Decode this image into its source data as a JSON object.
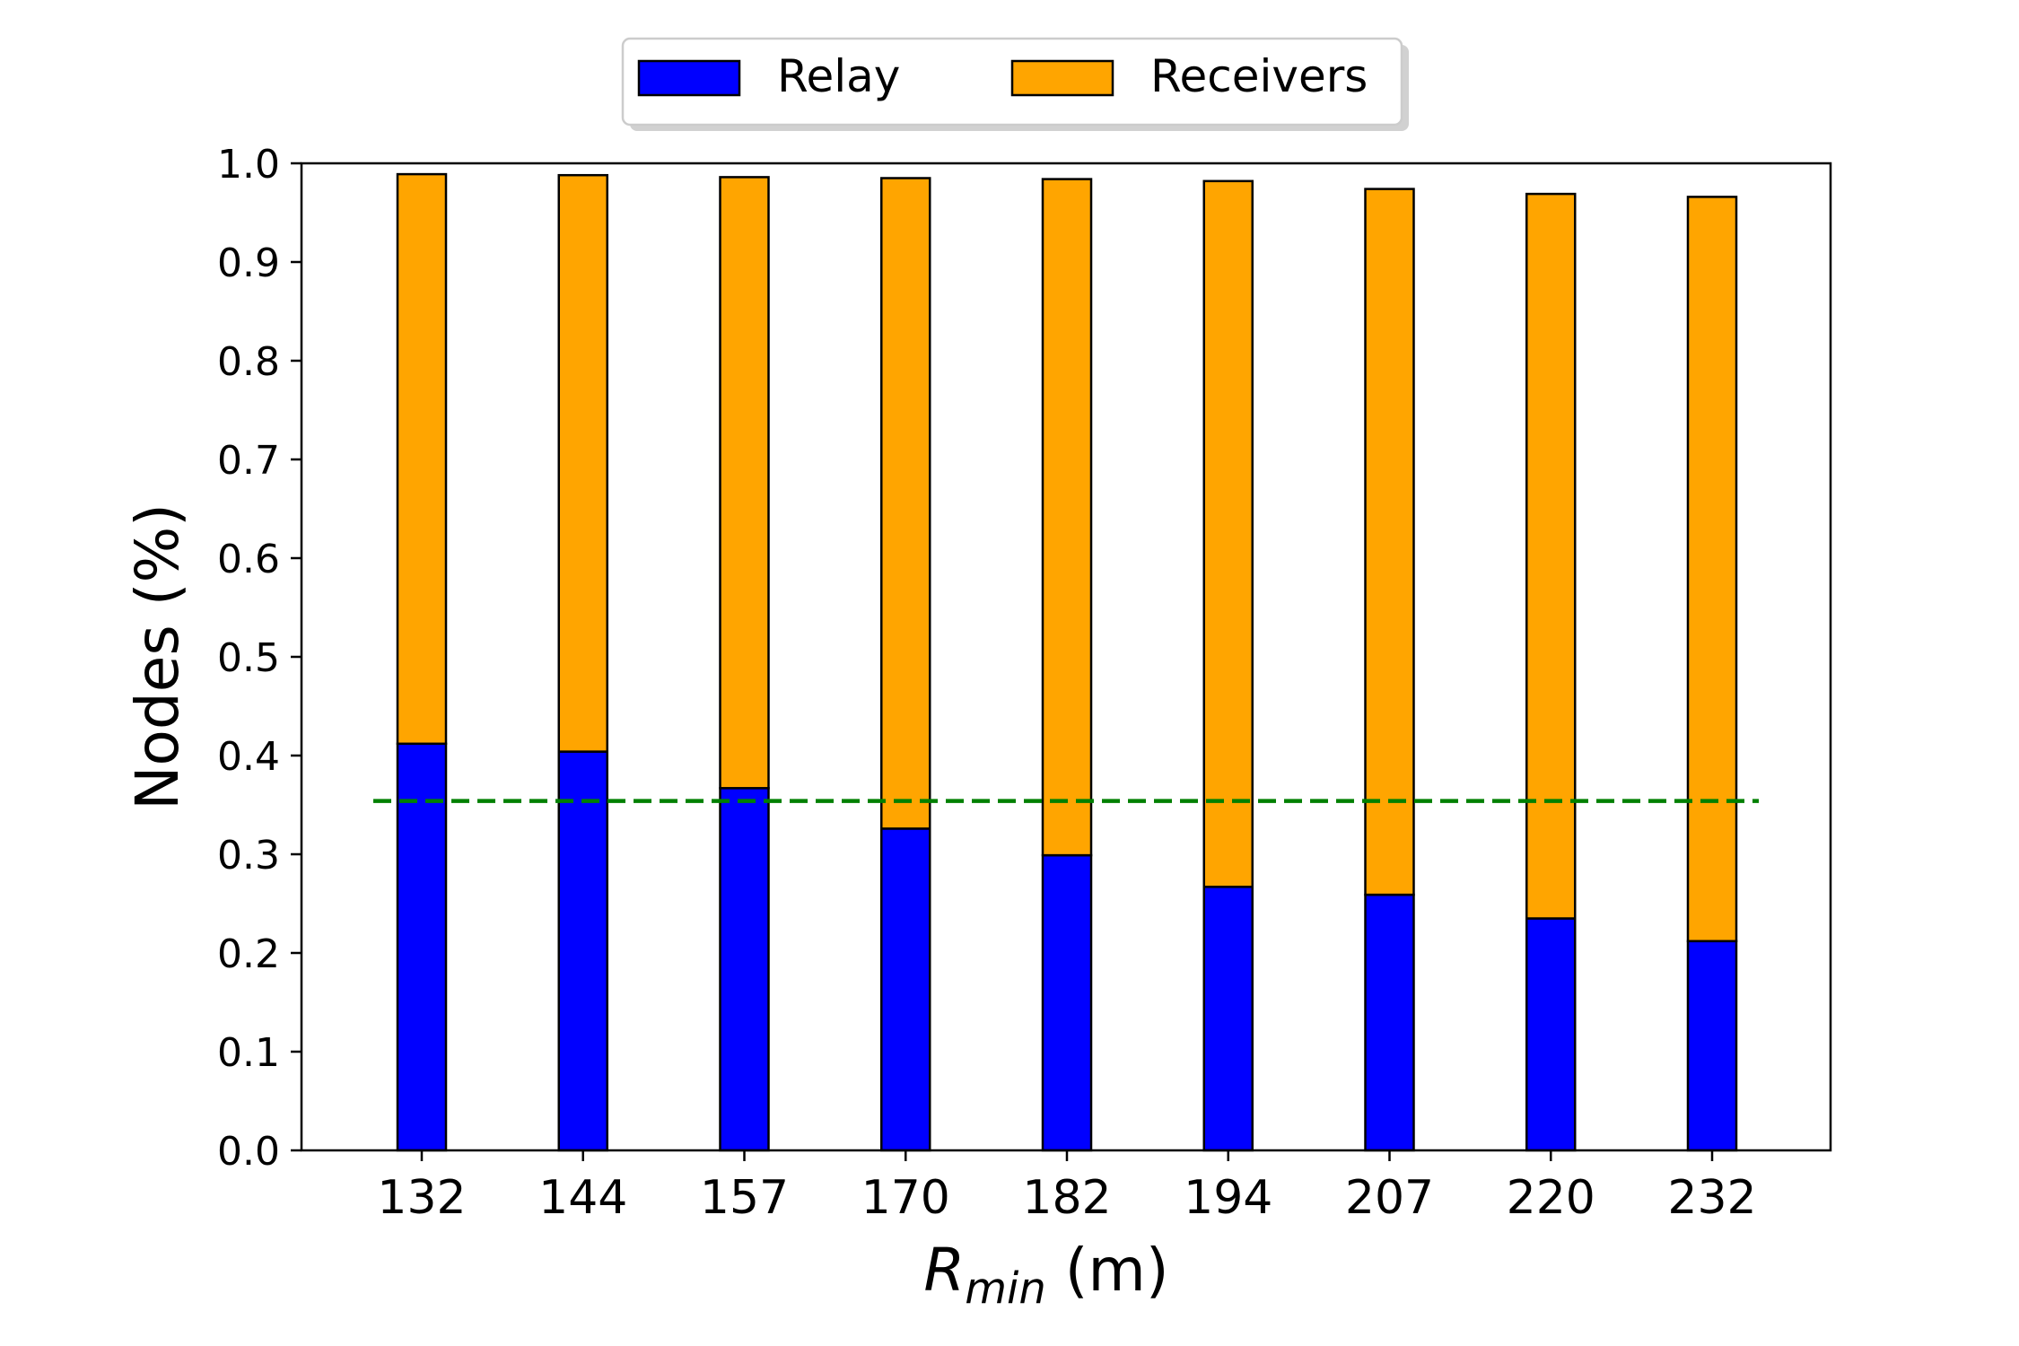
{
  "chart_data": {
    "type": "bar",
    "stacked": true,
    "categories": [
      "132",
      "144",
      "157",
      "170",
      "182",
      "194",
      "207",
      "220",
      "232"
    ],
    "series": [
      {
        "name": "Relay",
        "color": "#0000ff",
        "values": [
          0.412,
          0.404,
          0.367,
          0.326,
          0.299,
          0.267,
          0.259,
          0.235,
          0.212
        ]
      },
      {
        "name": "Receivers",
        "color": "#ffa500",
        "values": [
          0.577,
          0.584,
          0.619,
          0.659,
          0.685,
          0.715,
          0.715,
          0.734,
          0.754
        ]
      }
    ],
    "reference_line": {
      "y": 0.354,
      "color": "#008000",
      "style": "dashed"
    },
    "xlabel_main": "R",
    "xlabel_sub": "min",
    "xlabel_unit": " (m)",
    "ylabel": "Nodes (%)",
    "ylim": [
      0.0,
      1.0
    ],
    "yticks": [
      "0.0",
      "0.1",
      "0.2",
      "0.3",
      "0.4",
      "0.5",
      "0.6",
      "0.7",
      "0.8",
      "0.9",
      "1.0"
    ],
    "legend_position": "top-center",
    "grid": false
  }
}
